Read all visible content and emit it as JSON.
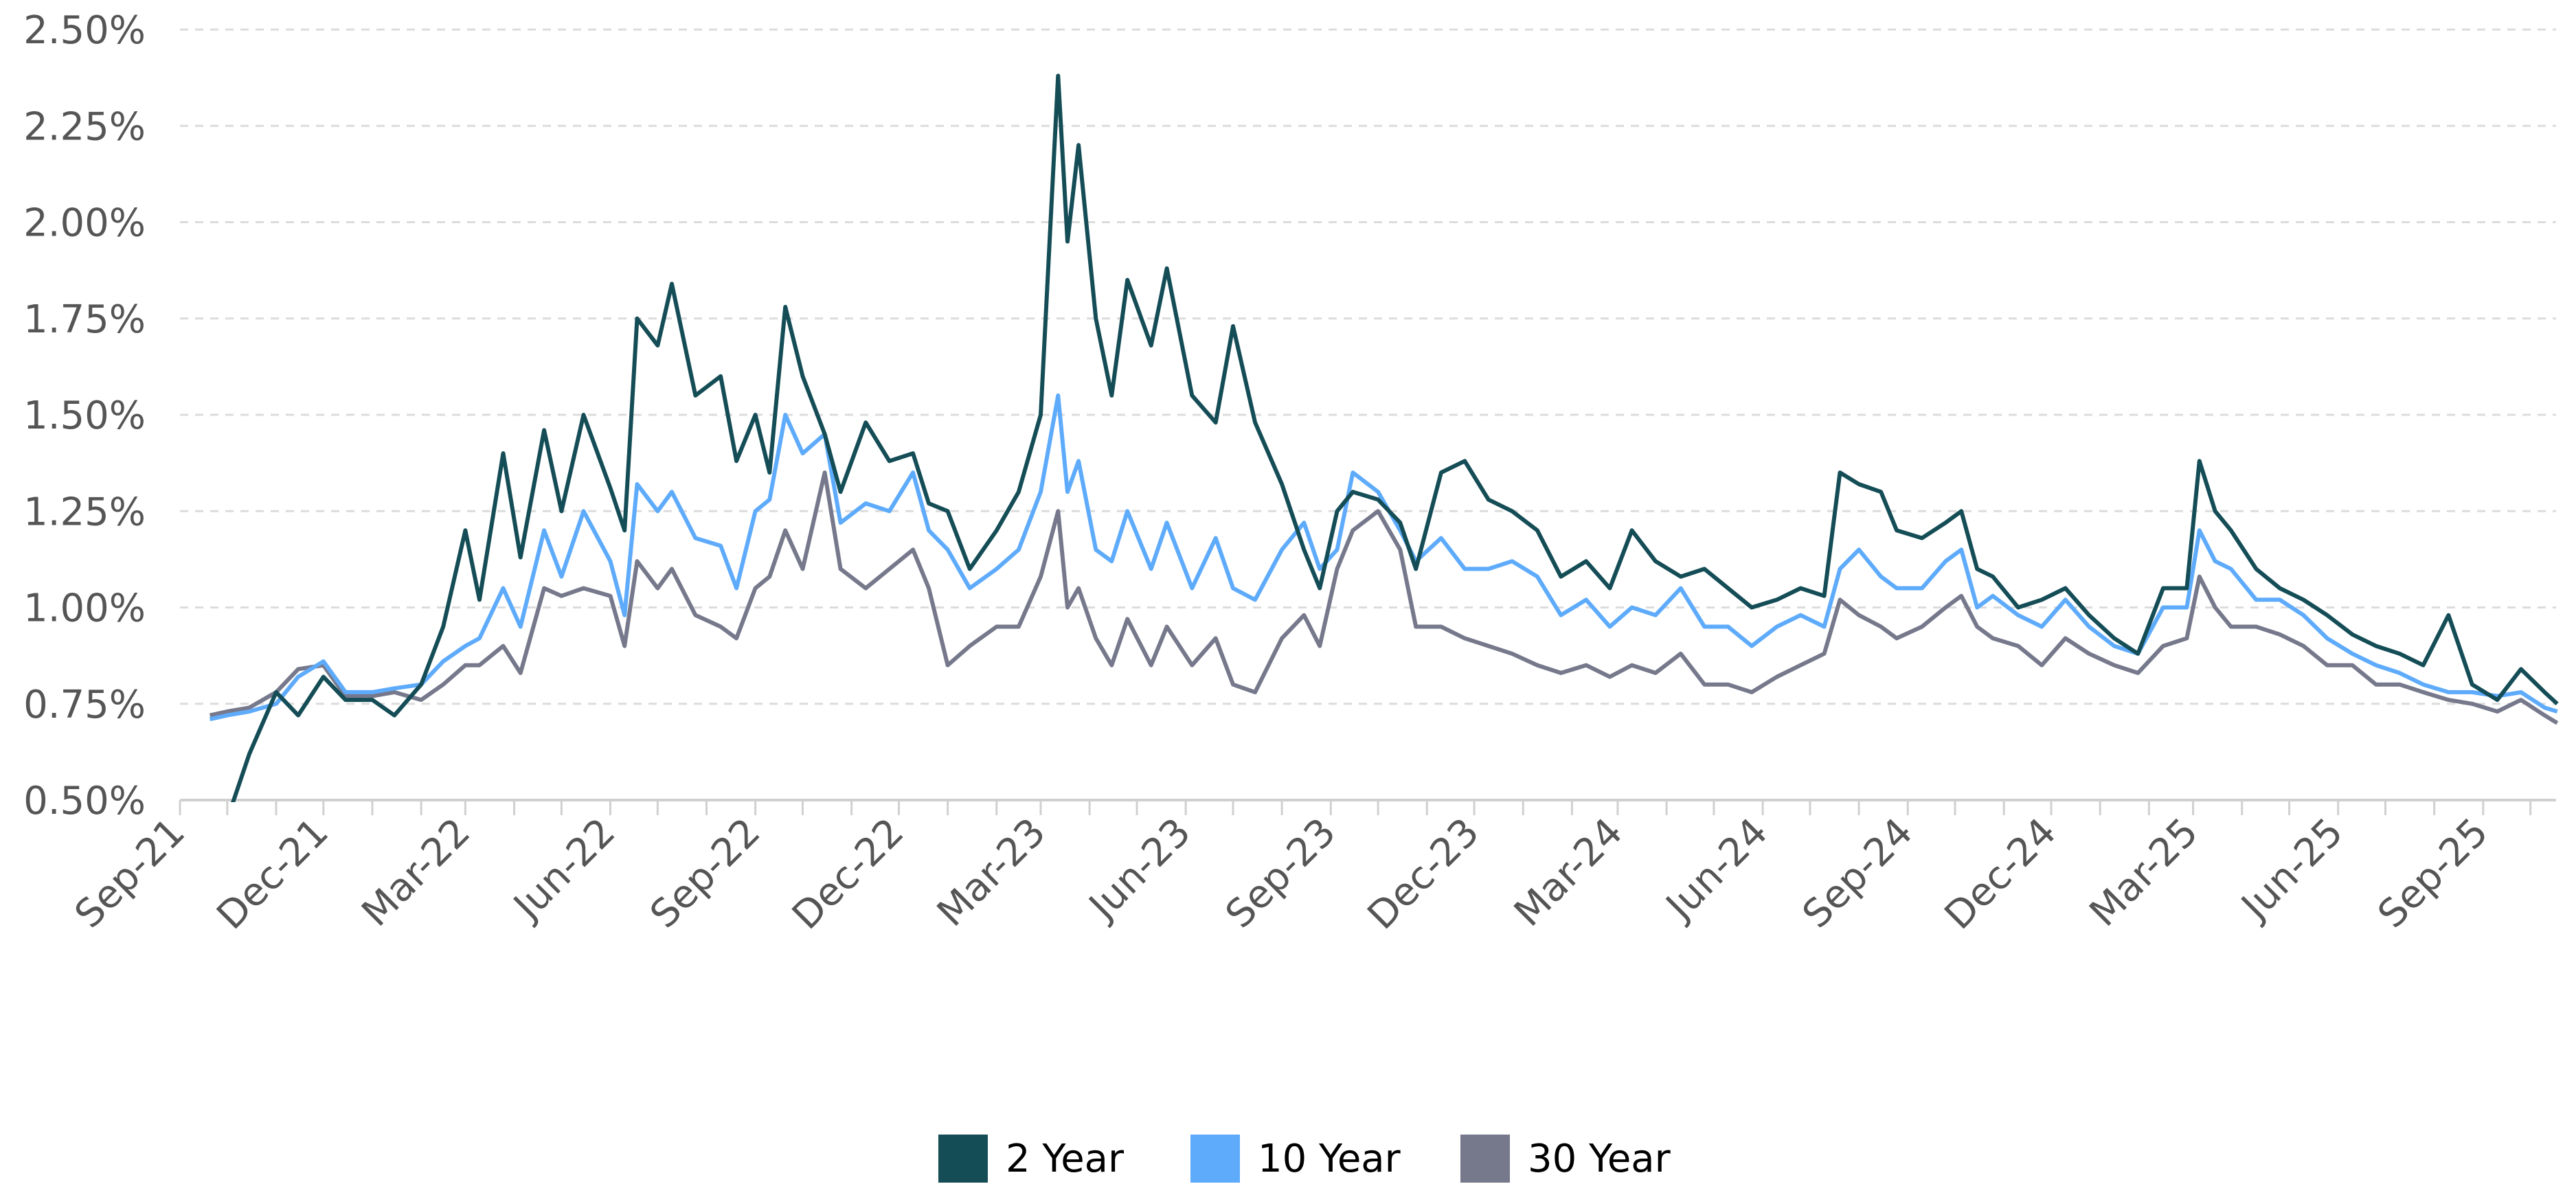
{
  "chart_data": {
    "type": "line",
    "title": "",
    "xlabel": "",
    "ylabel": "",
    "ylim": [
      0.5,
      2.5
    ],
    "y_ticks": [
      "0.50%",
      "0.75%",
      "1.00%",
      "1.25%",
      "1.50%",
      "1.75%",
      "2.00%",
      "2.25%",
      "2.50%"
    ],
    "x_ticks": [
      "Sep-21",
      "Dec-21",
      "Mar-22",
      "Jun-22",
      "Sep-22",
      "Dec-22",
      "Mar-23",
      "Jun-23",
      "Sep-23",
      "Dec-23",
      "Mar-24",
      "Jun-24",
      "Sep-24",
      "Dec-24",
      "Mar-25",
      "Jun-25",
      "Sep-25"
    ],
    "x_tick_dates": [
      "2021-09-01",
      "2021-12-01",
      "2022-03-01",
      "2022-06-01",
      "2022-09-01",
      "2022-12-01",
      "2023-03-01",
      "2023-06-01",
      "2023-09-01",
      "2023-12-01",
      "2024-03-01",
      "2024-06-01",
      "2024-09-01",
      "2024-12-01",
      "2025-03-01",
      "2025-06-01",
      "2025-09-01"
    ],
    "xlim": [
      "2021-09-01",
      "2025-10-19"
    ],
    "grid": "horizontal dashed",
    "legend_position": "bottom",
    "x": [
      "2021-09-20",
      "2021-10-01",
      "2021-10-15",
      "2021-11-01",
      "2021-11-15",
      "2021-12-01",
      "2021-12-15",
      "2022-01-01",
      "2022-01-15",
      "2022-02-01",
      "2022-02-15",
      "2022-03-01",
      "2022-03-10",
      "2022-03-25",
      "2022-04-05",
      "2022-04-20",
      "2022-05-01",
      "2022-05-15",
      "2022-06-01",
      "2022-06-10",
      "2022-06-18",
      "2022-07-01",
      "2022-07-10",
      "2022-07-25",
      "2022-08-10",
      "2022-08-20",
      "2022-09-01",
      "2022-09-10",
      "2022-09-20",
      "2022-10-01",
      "2022-10-15",
      "2022-10-25",
      "2022-11-10",
      "2022-11-25",
      "2022-12-10",
      "2022-12-20",
      "2023-01-01",
      "2023-01-15",
      "2023-02-01",
      "2023-02-15",
      "2023-03-01",
      "2023-03-12",
      "2023-03-18",
      "2023-03-25",
      "2023-04-05",
      "2023-04-15",
      "2023-04-25",
      "2023-05-10",
      "2023-05-20",
      "2023-06-05",
      "2023-06-20",
      "2023-07-01",
      "2023-07-15",
      "2023-08-01",
      "2023-08-15",
      "2023-08-25",
      "2023-09-05",
      "2023-09-15",
      "2023-10-01",
      "2023-10-15",
      "2023-10-25",
      "2023-11-10",
      "2023-11-25",
      "2023-12-10",
      "2023-12-25",
      "2024-01-10",
      "2024-01-25",
      "2024-02-10",
      "2024-02-25",
      "2024-03-10",
      "2024-03-25",
      "2024-04-10",
      "2024-04-25",
      "2024-05-10",
      "2024-05-25",
      "2024-06-10",
      "2024-06-25",
      "2024-07-10",
      "2024-07-20",
      "2024-08-01",
      "2024-08-15",
      "2024-08-25",
      "2024-09-10",
      "2024-09-25",
      "2024-10-05",
      "2024-10-15",
      "2024-10-25",
      "2024-11-10",
      "2024-11-25",
      "2024-12-10",
      "2024-12-25",
      "2025-01-10",
      "2025-01-25",
      "2025-02-10",
      "2025-02-25",
      "2025-03-05",
      "2025-03-15",
      "2025-03-25",
      "2025-04-10",
      "2025-04-25",
      "2025-05-10",
      "2025-05-25",
      "2025-06-10",
      "2025-06-25",
      "2025-07-10",
      "2025-07-25",
      "2025-08-10",
      "2025-08-25",
      "2025-09-10",
      "2025-09-25",
      "2025-10-10",
      "2025-10-18"
    ],
    "series": [
      {
        "name": "2 Year",
        "color": "#154d57",
        "values": [
          0.4,
          0.45,
          0.62,
          0.78,
          0.72,
          0.82,
          0.76,
          0.76,
          0.72,
          0.8,
          0.95,
          1.2,
          1.02,
          1.4,
          1.13,
          1.46,
          1.25,
          1.5,
          1.31,
          1.2,
          1.75,
          1.68,
          1.84,
          1.55,
          1.6,
          1.38,
          1.5,
          1.35,
          1.78,
          1.6,
          1.45,
          1.3,
          1.48,
          1.38,
          1.4,
          1.27,
          1.25,
          1.1,
          1.2,
          1.3,
          1.5,
          2.38,
          1.95,
          2.2,
          1.75,
          1.55,
          1.85,
          1.68,
          1.88,
          1.55,
          1.48,
          1.73,
          1.48,
          1.32,
          1.15,
          1.05,
          1.25,
          1.3,
          1.28,
          1.22,
          1.1,
          1.35,
          1.38,
          1.28,
          1.25,
          1.2,
          1.08,
          1.12,
          1.05,
          1.2,
          1.12,
          1.08,
          1.1,
          1.05,
          1.0,
          1.02,
          1.05,
          1.03,
          1.35,
          1.32,
          1.3,
          1.2,
          1.18,
          1.22,
          1.25,
          1.1,
          1.08,
          1.0,
          1.02,
          1.05,
          0.98,
          0.92,
          0.88,
          1.05,
          1.05,
          1.38,
          1.25,
          1.2,
          1.1,
          1.05,
          1.02,
          0.98,
          0.93,
          0.9,
          0.88,
          0.85,
          0.98,
          0.8,
          0.76,
          0.84,
          0.78,
          0.75
        ]
      },
      {
        "name": "10 Year",
        "color": "#5eabfb",
        "values": [
          0.71,
          0.72,
          0.73,
          0.75,
          0.82,
          0.86,
          0.78,
          0.78,
          0.79,
          0.8,
          0.86,
          0.9,
          0.92,
          1.05,
          0.95,
          1.2,
          1.08,
          1.25,
          1.12,
          0.98,
          1.32,
          1.25,
          1.3,
          1.18,
          1.16,
          1.05,
          1.25,
          1.28,
          1.5,
          1.4,
          1.45,
          1.22,
          1.27,
          1.25,
          1.35,
          1.2,
          1.15,
          1.05,
          1.1,
          1.15,
          1.3,
          1.55,
          1.3,
          1.38,
          1.15,
          1.12,
          1.25,
          1.1,
          1.22,
          1.05,
          1.18,
          1.05,
          1.02,
          1.15,
          1.22,
          1.1,
          1.15,
          1.35,
          1.3,
          1.2,
          1.12,
          1.18,
          1.1,
          1.1,
          1.12,
          1.08,
          0.98,
          1.02,
          0.95,
          1.0,
          0.98,
          1.05,
          0.95,
          0.95,
          0.9,
          0.95,
          0.98,
          0.95,
          1.1,
          1.15,
          1.08,
          1.05,
          1.05,
          1.12,
          1.15,
          1.0,
          1.03,
          0.98,
          0.95,
          1.02,
          0.95,
          0.9,
          0.88,
          1.0,
          1.0,
          1.2,
          1.12,
          1.1,
          1.02,
          1.02,
          0.98,
          0.92,
          0.88,
          0.85,
          0.83,
          0.8,
          0.78,
          0.78,
          0.77,
          0.78,
          0.74,
          0.73
        ]
      },
      {
        "name": "30 Year",
        "color": "#76788b",
        "values": [
          0.72,
          0.73,
          0.74,
          0.78,
          0.84,
          0.85,
          0.77,
          0.77,
          0.78,
          0.76,
          0.8,
          0.85,
          0.85,
          0.9,
          0.83,
          1.05,
          1.03,
          1.05,
          1.03,
          0.9,
          1.12,
          1.05,
          1.1,
          0.98,
          0.95,
          0.92,
          1.05,
          1.08,
          1.2,
          1.1,
          1.35,
          1.1,
          1.05,
          1.1,
          1.15,
          1.05,
          0.85,
          0.9,
          0.95,
          0.95,
          1.08,
          1.25,
          1.0,
          1.05,
          0.92,
          0.85,
          0.97,
          0.85,
          0.95,
          0.85,
          0.92,
          0.8,
          0.78,
          0.92,
          0.98,
          0.9,
          1.1,
          1.2,
          1.25,
          1.15,
          0.95,
          0.95,
          0.92,
          0.9,
          0.88,
          0.85,
          0.83,
          0.85,
          0.82,
          0.85,
          0.83,
          0.88,
          0.8,
          0.8,
          0.78,
          0.82,
          0.85,
          0.88,
          1.02,
          0.98,
          0.95,
          0.92,
          0.95,
          1.0,
          1.03,
          0.95,
          0.92,
          0.9,
          0.85,
          0.92,
          0.88,
          0.85,
          0.83,
          0.9,
          0.92,
          1.08,
          1.0,
          0.95,
          0.95,
          0.93,
          0.9,
          0.85,
          0.85,
          0.8,
          0.8,
          0.78,
          0.76,
          0.75,
          0.73,
          0.76,
          0.72,
          0.7
        ]
      }
    ]
  }
}
